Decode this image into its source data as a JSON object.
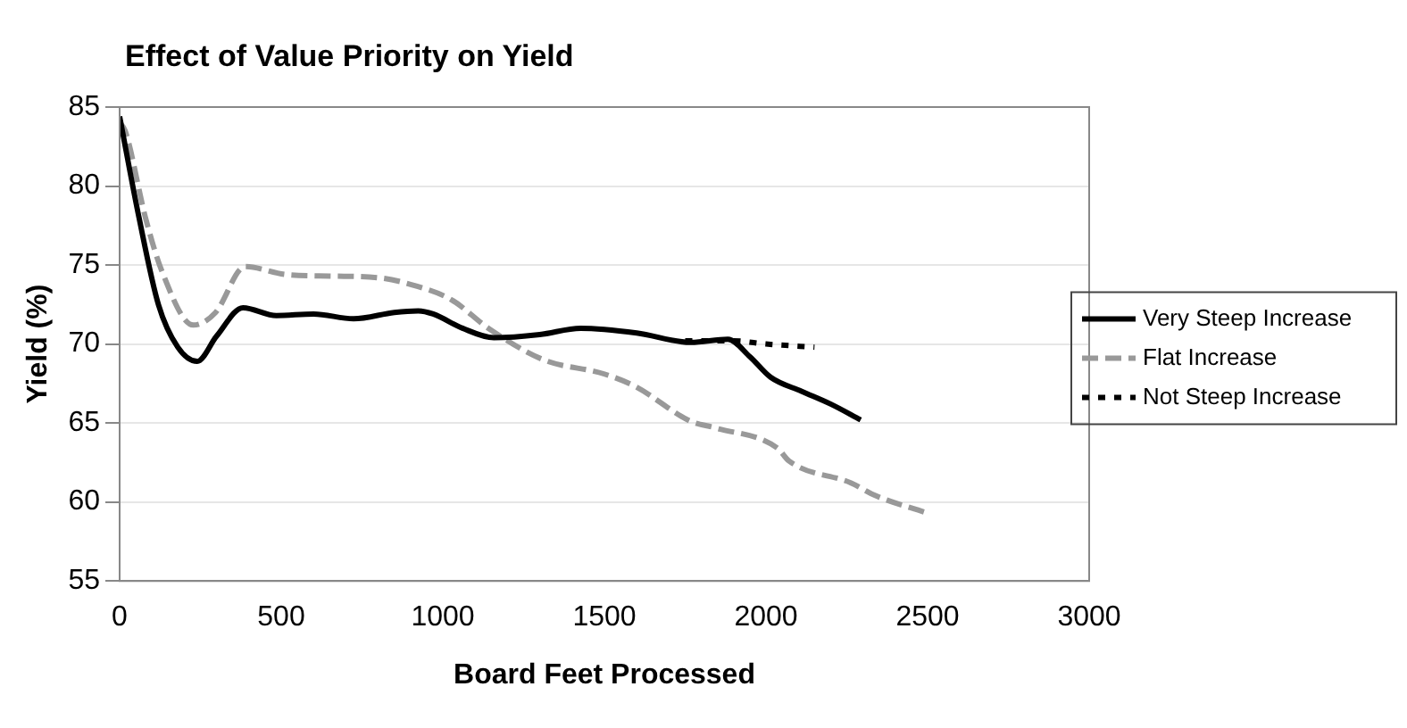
{
  "chart_data": {
    "type": "line",
    "title": "Effect of Value Priority on Yield",
    "xlabel": "Board Feet Processed",
    "ylabel": "Yield (%)",
    "xlim": [
      0,
      3000
    ],
    "xticks": [
      0,
      500,
      1000,
      1500,
      2000,
      2500,
      3000
    ],
    "ylim": [
      55,
      85
    ],
    "yticks": [
      55,
      60,
      65,
      70,
      75,
      80,
      85
    ],
    "grid": "y",
    "legend": "right",
    "marker": "none",
    "series": [
      {
        "name": "Very Steep Increase",
        "color": "#000000",
        "line_style": "solid",
        "x": [
          0,
          60,
          120,
          180,
          240,
          300,
          382,
          485,
          600,
          724,
          850,
          924,
          970,
          1061,
          1158,
          1300,
          1426,
          1600,
          1768,
          1882,
          1950,
          2014,
          2111,
          2200,
          2293
        ],
        "values": [
          84.4,
          78,
          72.5,
          69.8,
          68.9,
          70.5,
          72.3,
          71.8,
          71.9,
          71.6,
          72.0,
          72.1,
          71.9,
          71.0,
          70.4,
          70.6,
          71.0,
          70.7,
          70.1,
          70.3,
          69.2,
          67.9,
          67.0,
          66.2,
          65.2
        ]
      },
      {
        "name": "Flat Increase",
        "color": "#999999",
        "line_style": "dashed",
        "x": [
          0,
          17,
          80,
          131,
          228,
          297,
          388,
          513,
          650,
          799,
          913,
          1027,
          1141,
          1312,
          1500,
          1597,
          1768,
          1842,
          2036,
          2071,
          2264,
          2339,
          2499
        ],
        "values": [
          84.0,
          83.5,
          78,
          74.6,
          71.2,
          72.0,
          74.9,
          74.4,
          74.3,
          74.2,
          73.7,
          72.8,
          71.0,
          69.0,
          68.1,
          67.3,
          65.1,
          64.7,
          63.4,
          62.6,
          61.2,
          60.4,
          59.3
        ]
      },
      {
        "name": "Not Steep Increase",
        "color": "#000000",
        "line_style": "dotted",
        "x": [
          1750,
          1900,
          2000,
          2150
        ],
        "values": [
          70.2,
          70.2,
          70.0,
          69.8
        ]
      }
    ]
  }
}
